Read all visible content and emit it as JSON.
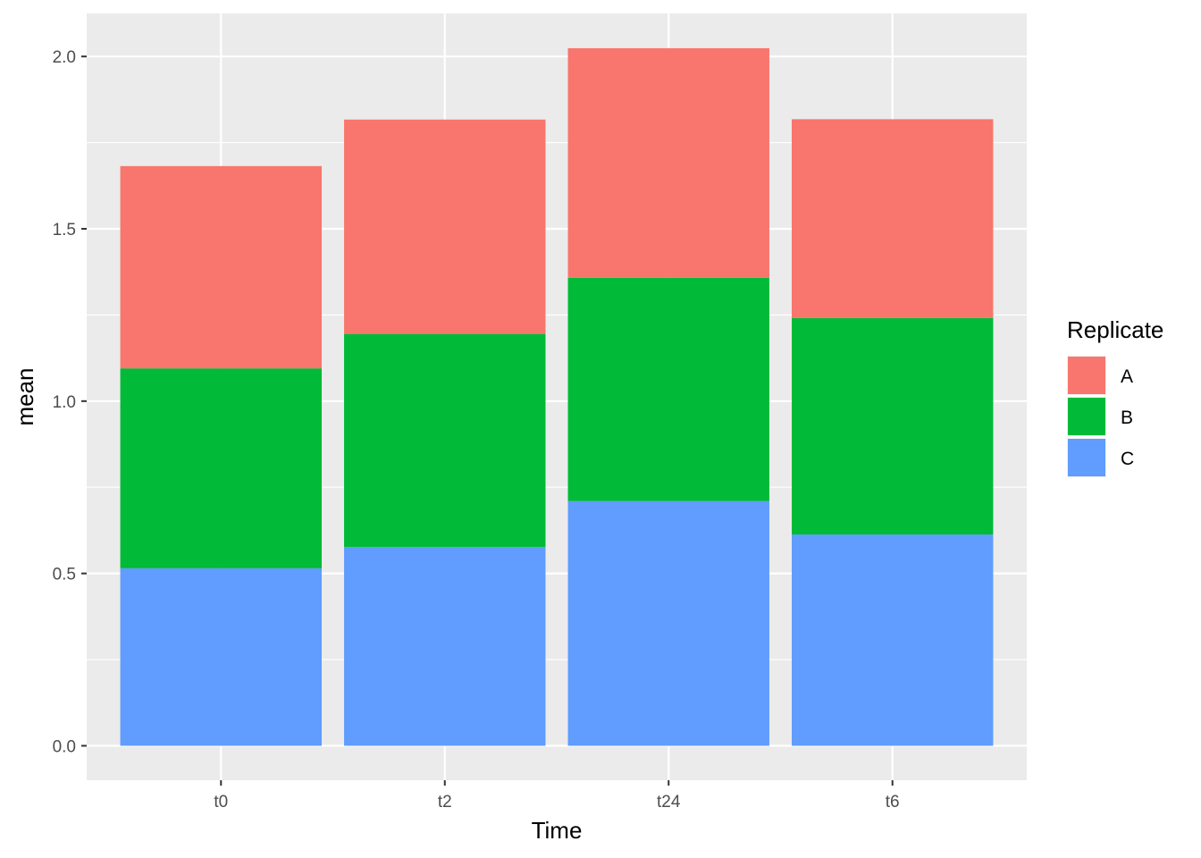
{
  "chart_data": {
    "type": "bar",
    "stacked": true,
    "categories": [
      "t0",
      "t2",
      "t24",
      "t6"
    ],
    "series": [
      {
        "name": "C",
        "color": "#619CFF",
        "values": [
          0.515,
          0.577,
          0.71,
          0.613
        ]
      },
      {
        "name": "B",
        "color": "#00BA38",
        "values": [
          0.58,
          0.618,
          0.648,
          0.628
        ]
      },
      {
        "name": "A",
        "color": "#F8766D",
        "values": [
          0.587,
          0.622,
          0.666,
          0.577
        ]
      }
    ],
    "title": "",
    "xlabel": "Time",
    "ylabel": "mean",
    "ylim": [
      -0.1,
      2.125
    ],
    "yticks": [
      0.0,
      0.5,
      1.0,
      1.5,
      2.0
    ],
    "ytick_labels": [
      "0.0",
      "0.5",
      "1.0",
      "1.5",
      "2.0"
    ],
    "grid": true,
    "panel_background": "#EBEBEB",
    "legend": {
      "title": "Replicate",
      "position": "right",
      "entries": [
        {
          "label": "A",
          "color": "#F8766D"
        },
        {
          "label": "B",
          "color": "#00BA38"
        },
        {
          "label": "C",
          "color": "#619CFF"
        }
      ]
    }
  }
}
